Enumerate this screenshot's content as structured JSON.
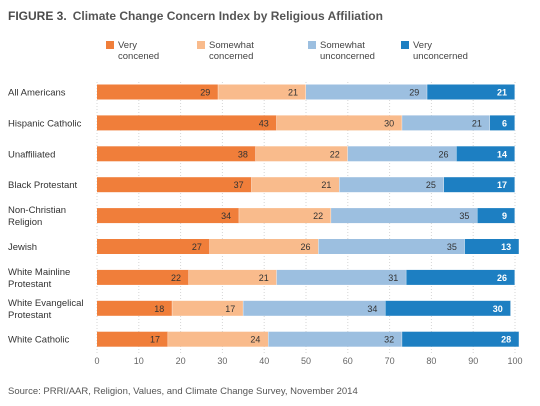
{
  "figure": {
    "number": "FIGURE 3.",
    "title": "Climate Change Concern Index by Religious Affiliation",
    "source": "Source: PRRI/AAR, Religion, Values, and Climate Change Survey, November 2014"
  },
  "colors": {
    "very_concerned": "#f07e3a",
    "somewhat_concerned": "#f9bb8c",
    "somewhat_unconcerned": "#9cbfe0",
    "very_unconcerned": "#1d7fc2"
  },
  "chart_data": {
    "type": "bar",
    "orientation": "horizontal",
    "stacked": true,
    "title": "Climate Change Concern Index by Religious Affiliation",
    "xlim": [
      0,
      100
    ],
    "xticks": [
      0,
      10,
      20,
      30,
      40,
      50,
      60,
      70,
      80,
      90,
      100
    ],
    "legend_position": "top",
    "categories": [
      [
        "All Americans"
      ],
      [
        "Hispanic Catholic"
      ],
      [
        "Unaffiliated"
      ],
      [
        "Black Protestant"
      ],
      [
        "Non-Christian",
        "Religion"
      ],
      [
        "Jewish"
      ],
      [
        "White Mainline",
        "Protestant"
      ],
      [
        "White Evangelical",
        "Protestant"
      ],
      [
        "White Catholic"
      ]
    ],
    "series": [
      {
        "name": "Very concened",
        "legend_lines": [
          "Very",
          "concened"
        ],
        "color_key": "very_concerned",
        "label_color": "#333333",
        "values": [
          29,
          43,
          38,
          37,
          34,
          27,
          22,
          18,
          17
        ]
      },
      {
        "name": "Somewhat concerned",
        "legend_lines": [
          "Somewhat",
          "concerned"
        ],
        "color_key": "somewhat_concerned",
        "label_color": "#333333",
        "values": [
          21,
          30,
          22,
          21,
          22,
          26,
          21,
          17,
          24
        ]
      },
      {
        "name": "Somewhat unconcerned",
        "legend_lines": [
          "Somewhat",
          "unconcerned"
        ],
        "color_key": "somewhat_unconcerned",
        "label_color": "#333333",
        "values": [
          29,
          21,
          26,
          25,
          35,
          35,
          31,
          34,
          32
        ]
      },
      {
        "name": "Very unconcerned",
        "legend_lines": [
          "Very",
          "unconcerned"
        ],
        "color_key": "very_unconcerned",
        "label_color": "#ffffff",
        "values": [
          21,
          6,
          14,
          17,
          9,
          13,
          26,
          30,
          28
        ]
      }
    ]
  }
}
